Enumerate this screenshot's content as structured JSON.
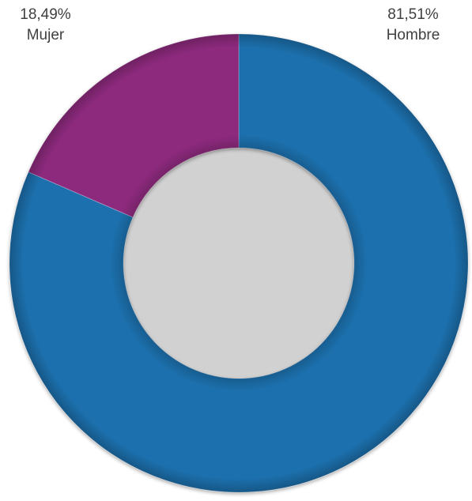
{
  "chart_data": {
    "type": "pie",
    "variant": "donut",
    "categories": [
      "Hombre",
      "Mujer"
    ],
    "values": [
      81.51,
      18.49
    ],
    "value_labels": [
      "81,51%",
      "18,49%"
    ],
    "colors": [
      "#1F6FAD",
      "#8E2A7E"
    ],
    "start": "12 o'clock, clockwise",
    "legend": "none",
    "title": ""
  }
}
